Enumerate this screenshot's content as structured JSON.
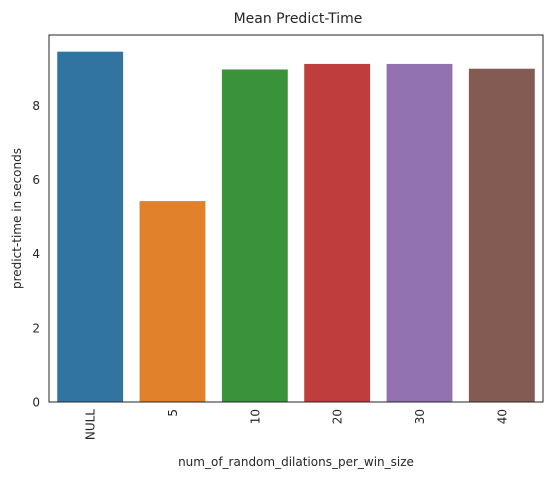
{
  "chart_data": {
    "type": "bar",
    "title": "Mean Predict-Time",
    "xlabel": "num_of_random_dilations_per_win_size",
    "ylabel": "predict-time in seconds",
    "categories": [
      "NULL",
      "5",
      "10",
      "20",
      "30",
      "40"
    ],
    "values": [
      9.45,
      5.42,
      8.97,
      9.12,
      9.12,
      8.99
    ],
    "colors": [
      "#3274a1",
      "#e1812c",
      "#3a923a",
      "#c03d3e",
      "#9372b2",
      "#845b53"
    ],
    "ylim": [
      0,
      9.9
    ],
    "yticks": [
      0,
      2,
      4,
      6,
      8
    ],
    "grid": false,
    "legend": "none"
  }
}
